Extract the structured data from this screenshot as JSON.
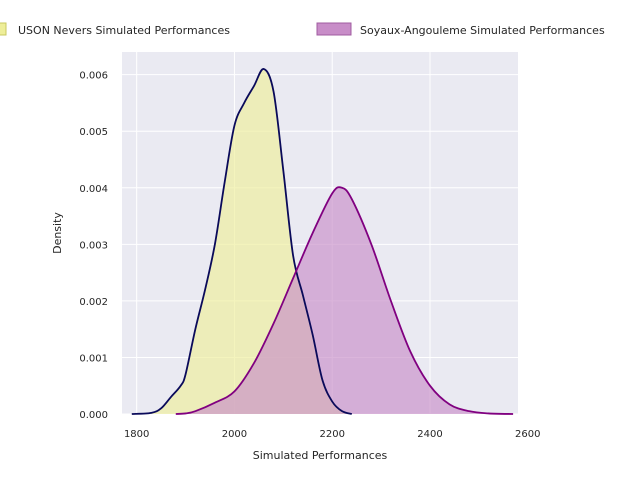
{
  "chart_data": {
    "type": "area",
    "title": "",
    "xlabel": "Simulated Performances",
    "ylabel": "Density",
    "xlim": [
      1770,
      2580
    ],
    "ylim": [
      0,
      0.0064
    ],
    "xticks": [
      1800,
      2000,
      2200,
      2400,
      2600
    ],
    "yticks": [
      0.0,
      0.001,
      0.002,
      0.003,
      0.004,
      0.005,
      0.006
    ],
    "ytick_labels": [
      "0.000",
      "0.001",
      "0.002",
      "0.003",
      "0.004",
      "0.005",
      "0.006"
    ],
    "grid": true,
    "legend_position": "top",
    "series": [
      {
        "name": "USON Nevers Simulated Performances",
        "line_color": "#0a0a5a",
        "fill_color": "#eeee99",
        "points": [
          [
            1790,
            0.0
          ],
          [
            1830,
            2e-05
          ],
          [
            1850,
            0.0001
          ],
          [
            1870,
            0.0003
          ],
          [
            1890,
            0.0005
          ],
          [
            1900,
            0.0007
          ],
          [
            1920,
            0.0015
          ],
          [
            1940,
            0.0022
          ],
          [
            1960,
            0.003
          ],
          [
            1980,
            0.0041
          ],
          [
            2000,
            0.0051
          ],
          [
            2020,
            0.0055
          ],
          [
            2040,
            0.0058
          ],
          [
            2060,
            0.0061
          ],
          [
            2080,
            0.0057
          ],
          [
            2100,
            0.0043
          ],
          [
            2120,
            0.0028
          ],
          [
            2140,
            0.0021
          ],
          [
            2160,
            0.0014
          ],
          [
            2180,
            0.0006
          ],
          [
            2200,
            0.00022
          ],
          [
            2220,
            5e-05
          ],
          [
            2240,
            0.0
          ]
        ]
      },
      {
        "name": "Soyaux-Angouleme Simulated Performances",
        "line_color": "#800080",
        "fill_color": "#c88dc8",
        "points": [
          [
            1880,
            0.0
          ],
          [
            1900,
            1e-05
          ],
          [
            1920,
            5e-05
          ],
          [
            1960,
            0.0002
          ],
          [
            2000,
            0.0004
          ],
          [
            2040,
            0.0009
          ],
          [
            2080,
            0.0016
          ],
          [
            2120,
            0.0024
          ],
          [
            2160,
            0.0032
          ],
          [
            2200,
            0.0039
          ],
          [
            2220,
            0.004
          ],
          [
            2240,
            0.0038
          ],
          [
            2280,
            0.003
          ],
          [
            2320,
            0.002
          ],
          [
            2360,
            0.0011
          ],
          [
            2400,
            0.0005
          ],
          [
            2440,
            0.00017
          ],
          [
            2480,
            5e-05
          ],
          [
            2520,
            1e-05
          ],
          [
            2570,
            0.0
          ]
        ]
      }
    ]
  }
}
